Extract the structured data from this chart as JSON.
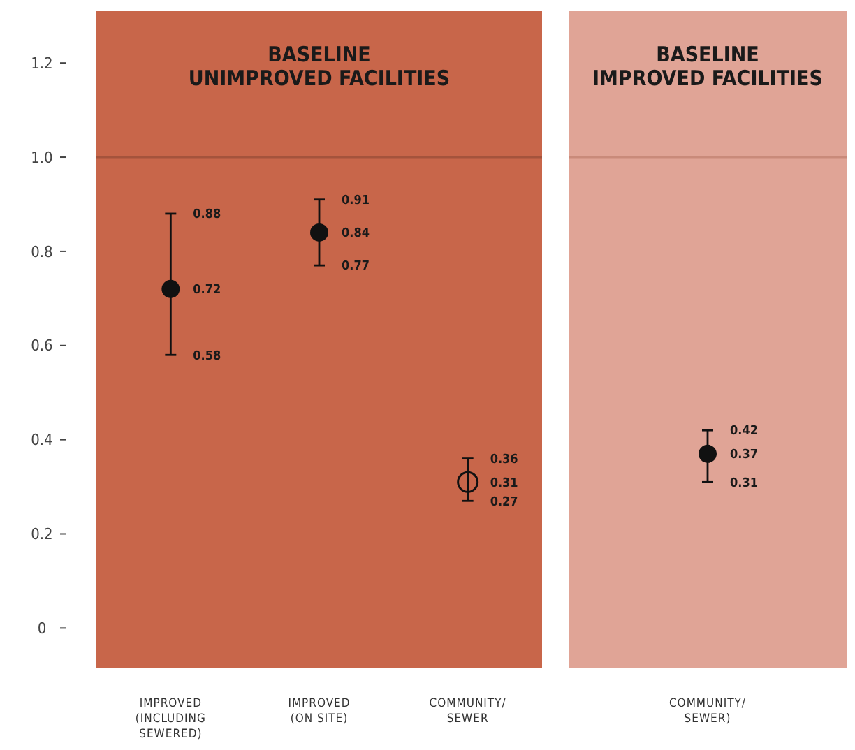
{
  "chart_data": [
    {
      "type": "scatter",
      "title": "BASELINE\nUNIMPROVED FACILITIES",
      "categories": [
        "IMPROVED\n(INCLUDING\nSEWERED)",
        "IMPROVED\n(ON SITE)",
        "COMMUNITY/\nSEWER"
      ],
      "series": [
        {
          "color": "#111111",
          "marker": "circle",
          "values": [
            0.72,
            0.84,
            null
          ],
          "errors": [
            [
              0.58,
              0.88
            ],
            [
              0.77,
              0.91
            ],
            null
          ]
        },
        {
          "color": "#111111",
          "marker": "circle-open",
          "values": [
            null,
            null,
            0.31
          ],
          "errors": [
            null,
            null,
            [
              0.27,
              0.36
            ]
          ]
        }
      ],
      "annotations": [
        {
          "text": "0.88",
          "x": "IMPROVED\n(INCLUDING\nSEWERED)",
          "y": 0.88
        },
        {
          "text": "0.58",
          "x": "IMPROVED\n(INCLUDING\nSEWERED)",
          "y": 0.58
        },
        {
          "text": "0.91",
          "x": "IMPROVED\n(ON SITE)",
          "y": 0.91
        },
        {
          "text": "0.77",
          "x": "IMPROVED\n(ON SITE)",
          "y": 0.77
        },
        {
          "text": "0.36",
          "x": "COMMUNITY/\nSEWER",
          "y": 0.36
        },
        {
          "text": "0.27",
          "x": "COMMUNITY/\nSEWER",
          "y": 0.27
        }
      ],
      "ylim": [
        -0.084,
        1.31
      ],
      "yticks": [
        0,
        0.2,
        0.4,
        0.6,
        0.8,
        {
          "value": 1,
          "label": "1.0"
        },
        1.2
      ],
      "ref_lines": [
        {
          "axis": "y",
          "value": 1,
          "color": "#a4533c"
        }
      ],
      "data_labels": true
    },
    {
      "type": "scatter",
      "title": "BASELINE\nIMPROVED FACILITIES",
      "categories": [
        "COMMUNITY/\nSEWER)"
      ],
      "series": [
        {
          "color": "#111111",
          "marker": "circle",
          "values": [
            0.37
          ],
          "errors": [
            [
              0.31,
              0.42
            ]
          ]
        }
      ],
      "annotations": [
        {
          "text": "0.42",
          "x": "COMMUNITY/\nSEWER)",
          "y": 0.42
        },
        {
          "text": "0.31",
          "x": "COMMUNITY/\nSEWER)",
          "y": 0.31
        }
      ],
      "ylim": [
        -0.084,
        1.31
      ],
      "tick_labels": "x",
      "ref_lines": [
        {
          "axis": "y",
          "value": 1,
          "color": "#c98a7a"
        }
      ],
      "data_labels": true
    }
  ]
}
